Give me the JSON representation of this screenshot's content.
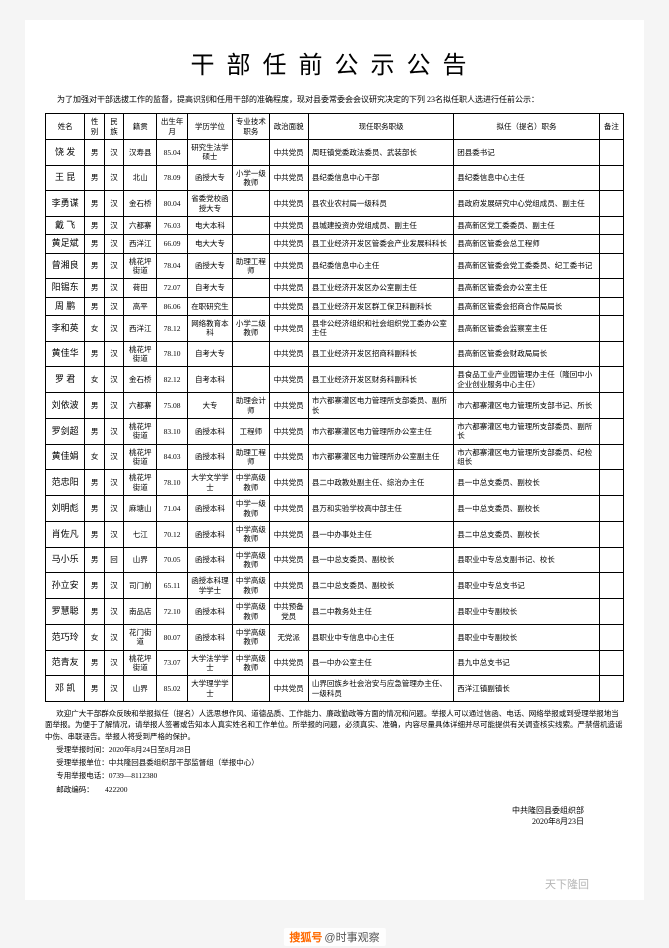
{
  "title": "干部任前公示公告",
  "intro": "为了加强对干部选拔工作的监督，提高识别和任用干部的准确程度，现对县委常委会会议研究决定的下列 23名拟任职人选进行任前公示：",
  "headers": [
    "姓名",
    "性别",
    "民族",
    "籍贯",
    "出生年月",
    "学历学位",
    "专业技术职务",
    "政治面貌",
    "现任职务职级",
    "拟任（提名）职务",
    "备注"
  ],
  "rows": [
    {
      "name": "饶 发",
      "sex": "男",
      "eth": "汉",
      "native": "汉寿县",
      "birth": "85.04",
      "edu": "研究生法学硕士",
      "tech": "",
      "pol": "中共党员",
      "cur": "周旺镇党委政法委员、武装部长",
      "prop": "团县委书记",
      "note": ""
    },
    {
      "name": "王 昆",
      "sex": "男",
      "eth": "汉",
      "native": "北山",
      "birth": "78.09",
      "edu": "函授大专",
      "tech": "小学一级教师",
      "pol": "中共党员",
      "cur": "县纪委信息中心干部",
      "prop": "县纪委信息中心主任",
      "note": ""
    },
    {
      "name": "李勇谋",
      "sex": "男",
      "eth": "汉",
      "native": "金石桥",
      "birth": "80.04",
      "edu": "省委党校函授大专",
      "tech": "",
      "pol": "中共党员",
      "cur": "县农业农村局一级科员",
      "prop": "县政府发展研究中心党组成员、副主任",
      "note": ""
    },
    {
      "name": "戴 飞",
      "sex": "男",
      "eth": "汉",
      "native": "六都寨",
      "birth": "76.03",
      "edu": "电大本科",
      "tech": "",
      "pol": "中共党员",
      "cur": "县城建投资办党组成员、副主任",
      "prop": "县高新区党工委委员、副主任",
      "note": ""
    },
    {
      "name": "黄足斌",
      "sex": "男",
      "eth": "汉",
      "native": "西洋江",
      "birth": "66.09",
      "edu": "电大大专",
      "tech": "",
      "pol": "中共党员",
      "cur": "县工业经济开发区管委会产业发展科科长",
      "prop": "县高新区管委会总工程师",
      "note": ""
    },
    {
      "name": "曾湘良",
      "sex": "男",
      "eth": "汉",
      "native": "桃花坪街道",
      "birth": "78.04",
      "edu": "函授大专",
      "tech": "助理工程师",
      "pol": "中共党员",
      "cur": "县纪委信息中心主任",
      "prop": "县高新区管委会党工委委员、纪工委书记",
      "note": ""
    },
    {
      "name": "阳锡东",
      "sex": "男",
      "eth": "汉",
      "native": "荷田",
      "birth": "72.07",
      "edu": "自考大专",
      "tech": "",
      "pol": "中共党员",
      "cur": "县工业经济开发区办公室副主任",
      "prop": "县高新区管委会办公室主任",
      "note": ""
    },
    {
      "name": "周 鹏",
      "sex": "男",
      "eth": "汉",
      "native": "高平",
      "birth": "86.06",
      "edu": "在职研究生",
      "tech": "",
      "pol": "中共党员",
      "cur": "县工业经济开发区群工保卫科副科长",
      "prop": "县高新区管委会招商合作局局长",
      "note": ""
    },
    {
      "name": "李和英",
      "sex": "女",
      "eth": "汉",
      "native": "西洋江",
      "birth": "78.12",
      "edu": "网络教育本科",
      "tech": "小学二级教师",
      "pol": "中共党员",
      "cur": "县非公经济组织和社会组织党工委办公室主任",
      "prop": "县高新区管委会监察室主任",
      "note": ""
    },
    {
      "name": "黄佳华",
      "sex": "男",
      "eth": "汉",
      "native": "桃花坪街道",
      "birth": "78.10",
      "edu": "自考大专",
      "tech": "",
      "pol": "中共党员",
      "cur": "县工业经济开发区招商科副科长",
      "prop": "县高新区管委会财政局局长",
      "note": ""
    },
    {
      "name": "罗 君",
      "sex": "女",
      "eth": "汉",
      "native": "金石桥",
      "birth": "82.12",
      "edu": "自考本科",
      "tech": "",
      "pol": "中共党员",
      "cur": "县工业经济开发区财务科副科长",
      "prop": "县食品工业产业园管理办主任（隆回中小企业创业服务中心主任）",
      "note": ""
    },
    {
      "name": "刘依波",
      "sex": "男",
      "eth": "汉",
      "native": "六都寨",
      "birth": "75.08",
      "edu": "大专",
      "tech": "助理会计师",
      "pol": "中共党员",
      "cur": "市六都寨灌区电力管理所支部委员、副所长",
      "prop": "市六都寨灌区电力管理所支部书记、所长",
      "note": ""
    },
    {
      "name": "罗剑超",
      "sex": "男",
      "eth": "汉",
      "native": "桃花坪街道",
      "birth": "83.10",
      "edu": "函授本科",
      "tech": "工程师",
      "pol": "中共党员",
      "cur": "市六都寨灌区电力管理所办公室主任",
      "prop": "市六都寨灌区电力管理所支部委员、副所长",
      "note": ""
    },
    {
      "name": "黄佳娟",
      "sex": "女",
      "eth": "汉",
      "native": "桃花坪街道",
      "birth": "84.03",
      "edu": "函授本科",
      "tech": "助理工程师",
      "pol": "中共党员",
      "cur": "市六都寨灌区电力管理所办公室副主任",
      "prop": "市六都寨灌区电力管理所支部委员、纪检组长",
      "note": ""
    },
    {
      "name": "范忠阳",
      "sex": "男",
      "eth": "汉",
      "native": "桃花坪街道",
      "birth": "78.10",
      "edu": "大学文学学士",
      "tech": "中学高级教师",
      "pol": "中共党员",
      "cur": "县二中政教处副主任、综治办主任",
      "prop": "县一中总支委员、副校长",
      "note": ""
    },
    {
      "name": "刘明彪",
      "sex": "男",
      "eth": "汉",
      "native": "麻塘山",
      "birth": "71.04",
      "edu": "函授本科",
      "tech": "中学一级教师",
      "pol": "中共党员",
      "cur": "县万和实验学校高中部主任",
      "prop": "县一中总支委员、副校长",
      "note": ""
    },
    {
      "name": "肖佐凡",
      "sex": "男",
      "eth": "汉",
      "native": "七江",
      "birth": "70.12",
      "edu": "函授本科",
      "tech": "中学高级教师",
      "pol": "中共党员",
      "cur": "县一中办事处主任",
      "prop": "县二中总支委员、副校长",
      "note": ""
    },
    {
      "name": "马小乐",
      "sex": "男",
      "eth": "回",
      "native": "山界",
      "birth": "70.05",
      "edu": "函授本科",
      "tech": "中学高级教师",
      "pol": "中共党员",
      "cur": "县一中总支委员、副校长",
      "prop": "县职业中专总支副书记、校长",
      "note": ""
    },
    {
      "name": "孙立安",
      "sex": "男",
      "eth": "汉",
      "native": "司门前",
      "birth": "65.11",
      "edu": "函授本科理学学士",
      "tech": "中学高级教师",
      "pol": "中共党员",
      "cur": "县二中总支委员、副校长",
      "prop": "县职业中专总支书记",
      "note": ""
    },
    {
      "name": "罗慧聪",
      "sex": "男",
      "eth": "汉",
      "native": "南品店",
      "birth": "72.10",
      "edu": "函授本科",
      "tech": "中学高级教师",
      "pol": "中共预备党员",
      "cur": "县二中教务处主任",
      "prop": "县职业中专副校长",
      "note": ""
    },
    {
      "name": "范巧玲",
      "sex": "女",
      "eth": "汉",
      "native": "花门街道",
      "birth": "80.07",
      "edu": "函授本科",
      "tech": "中学高级教师",
      "pol": "无党派",
      "cur": "县职业中专信息中心主任",
      "prop": "县职业中专副校长",
      "note": ""
    },
    {
      "name": "范青友",
      "sex": "男",
      "eth": "汉",
      "native": "桃花坪街道",
      "birth": "73.07",
      "edu": "大学法学学士",
      "tech": "中学高级教师",
      "pol": "中共党员",
      "cur": "县一中办公室主任",
      "prop": "县九中总支书记",
      "note": ""
    },
    {
      "name": "邓 凯",
      "sex": "男",
      "eth": "汉",
      "native": "山界",
      "birth": "85.02",
      "edu": "大学理学学士",
      "tech": "",
      "pol": "中共党员",
      "cur": "山界回族乡社会治安与应急管理办主任、一级科员",
      "prop": "西洋江镇副镇长",
      "note": ""
    }
  ],
  "footer1": "欢迎广大干部群众反映和举报拟任（提名）人选思想作风、道德品质、工作能力、廉政勤政等方面的情况和问题。举报人可以通过信函、电话、网络举报或到受理举报地当面举报。为便于了解情况，请举报人签署或告知本人真实姓名和工作单位。所举报的问题，必须真实、准确，内容尽量具体详细并尽可能提供有关调查核实线索。严禁借机造谣中伤、串联诬告。举报人将受到严格的保护。",
  "footer_lines": [
    "受理举报时间：2020年8月24日至8月28日",
    "受理举报单位：中共隆回县委组织部干部监督组（举报中心）",
    "专用举报电话：0739—8112380",
    "邮政编码：　　422200"
  ],
  "sign_org": "中共隆回县委组织部",
  "sign_date": "2020年8月23日",
  "watermark": "天下隆回",
  "tag_brand": "搜狐号",
  "tag_text": "时事观察"
}
